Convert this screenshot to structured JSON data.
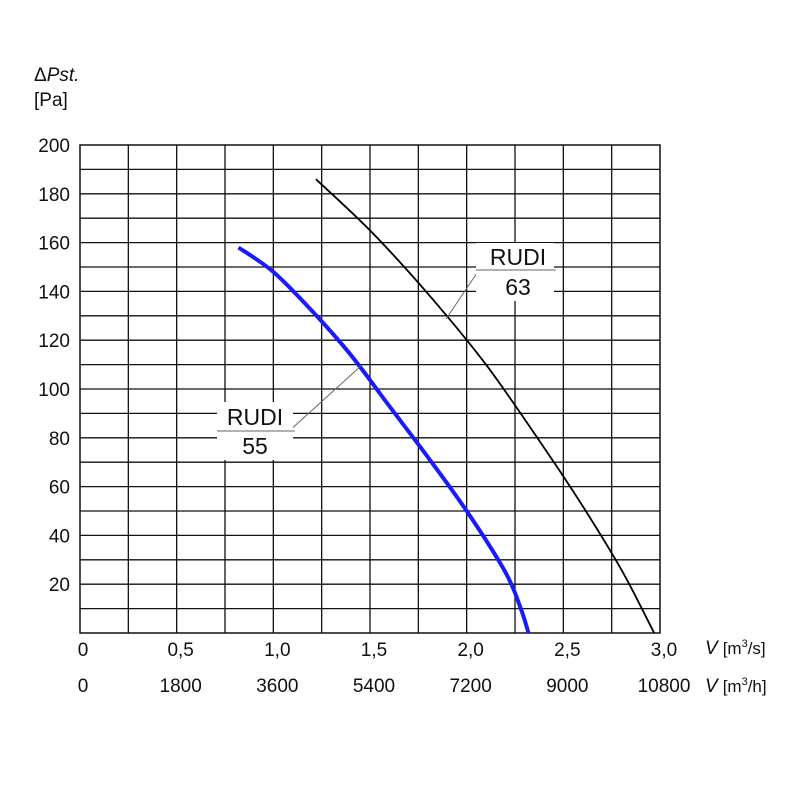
{
  "chart_data": {
    "type": "line",
    "title": "",
    "ylabel": {
      "symbol": "Δ",
      "name": "Pst.",
      "unit": "[Pa]"
    },
    "ylim": [
      0,
      200
    ],
    "yticks": [
      20,
      40,
      60,
      80,
      100,
      120,
      140,
      160,
      180,
      200
    ],
    "xlim": [
      0,
      3.0
    ],
    "xticks_primary": [
      "0",
      "0,5",
      "1,0",
      "1,5",
      "2,0",
      "2,5",
      "3,0"
    ],
    "xticks_primary_values": [
      0,
      0.5,
      1.0,
      1.5,
      2.0,
      2.5,
      3.0
    ],
    "xticks_secondary": [
      "0",
      "1800",
      "3600",
      "5400",
      "7200",
      "9000",
      "10800"
    ],
    "xlabel_primary": {
      "symbol": "V",
      "unit_pre": "[m",
      "unit_sup": "3",
      "unit_post": "/s]"
    },
    "xlabel_secondary": {
      "symbol": "V",
      "unit_pre": "[m",
      "unit_sup": "3",
      "unit_post": "/h]"
    },
    "grid": true,
    "series": [
      {
        "name": "RUDI 55",
        "label_line1": "RUDI",
        "label_line2": "55",
        "color": "#1a1aff",
        "x": [
          0.82,
          1.0,
          1.2,
          1.4,
          1.6,
          1.8,
          2.0,
          2.2,
          2.28,
          2.32
        ],
        "y": [
          158,
          148,
          132,
          114,
          93,
          72,
          50,
          25,
          10,
          0
        ]
      },
      {
        "name": "RUDI 63",
        "label_line1": "RUDI",
        "label_line2": "63",
        "color": "#000000",
        "x": [
          1.22,
          1.5,
          1.8,
          2.1,
          2.4,
          2.6,
          2.8,
          2.97
        ],
        "y": [
          186,
          165,
          139,
          110,
          76,
          52,
          26,
          0
        ]
      }
    ]
  }
}
